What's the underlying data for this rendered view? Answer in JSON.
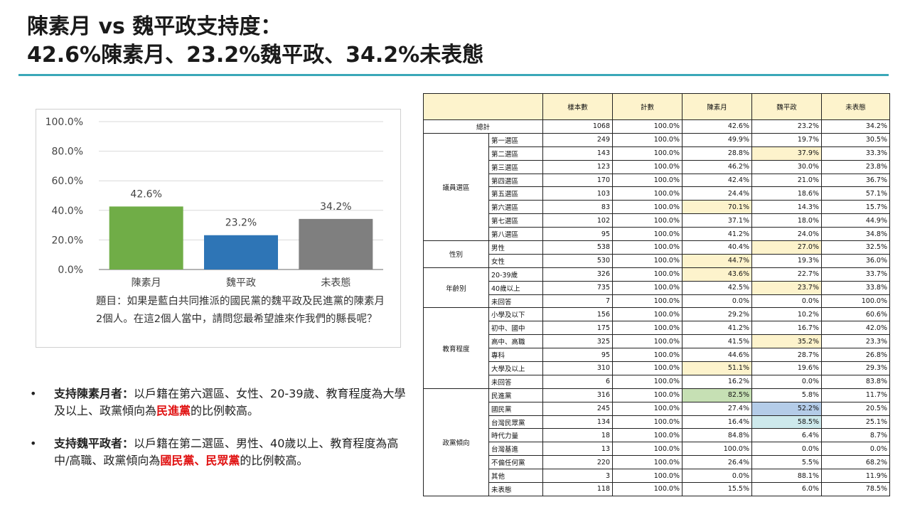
{
  "title": {
    "line1": "陳素月 vs 魏平政支持度：",
    "line2": "42.6%陳素月、23.2%魏平政、34.2%未表態"
  },
  "chart_data": {
    "type": "bar",
    "categories": [
      "陳素月",
      "魏平政",
      "未表態"
    ],
    "values": [
      42.6,
      23.2,
      34.2
    ],
    "value_labels": [
      "42.6%",
      "23.2%",
      "34.2%"
    ],
    "colors": [
      "#70ad47",
      "#2e75b6",
      "#7f7f7f"
    ],
    "ylim": [
      0,
      100
    ],
    "yticks": [
      0,
      20,
      40,
      60,
      80,
      100
    ],
    "ytick_labels": [
      "0.0%",
      "20.0%",
      "40.0%",
      "60.0%",
      "80.0%",
      "100.0%"
    ],
    "grid": true
  },
  "question": "題目：如果是藍白共同推派的國民黨的魏平政及民進黨的陳素月2個人。在這2個人當中，請問您最希望誰來作我們的縣長呢？",
  "bullets": [
    {
      "lead": "支持陳素月者：",
      "text": "以戶籍在第六選區、女性、20-39歲、教育程度為大學及以上、政黨傾向為",
      "red": "民進黨",
      "tail": "的比例較高。"
    },
    {
      "lead": "支持魏平政者：",
      "text": "以戶籍在第二選區、男性、40歲以上、教育程度為高中/高職、政黨傾向為",
      "red": "國民黨、民眾黨",
      "tail": "的比例較高。"
    }
  ],
  "table": {
    "headers": [
      "樣本數",
      "計數",
      "陳素月",
      "魏平政",
      "未表態"
    ],
    "total": {
      "label": "總計",
      "values": [
        "1068",
        "100.0%",
        "42.6%",
        "23.2%",
        "34.2%"
      ]
    },
    "groups": [
      {
        "name": "議員選區",
        "rows": [
          {
            "label": "第一選區",
            "values": [
              "249",
              "100.0%",
              "49.9%",
              "19.7%",
              "30.5%"
            ]
          },
          {
            "label": "第二選區",
            "values": [
              "143",
              "100.0%",
              "28.8%",
              "37.9%",
              "33.3%"
            ],
            "hl": {
              "3": "y"
            }
          },
          {
            "label": "第三選區",
            "values": [
              "123",
              "100.0%",
              "46.2%",
              "30.0%",
              "23.8%"
            ]
          },
          {
            "label": "第四選區",
            "values": [
              "170",
              "100.0%",
              "42.4%",
              "21.0%",
              "36.7%"
            ]
          },
          {
            "label": "第五選區",
            "values": [
              "103",
              "100.0%",
              "24.4%",
              "18.6%",
              "57.1%"
            ]
          },
          {
            "label": "第六選區",
            "values": [
              "83",
              "100.0%",
              "70.1%",
              "14.3%",
              "15.7%"
            ],
            "hl": {
              "2": "y"
            }
          },
          {
            "label": "第七選區",
            "values": [
              "102",
              "100.0%",
              "37.1%",
              "18.0%",
              "44.9%"
            ]
          },
          {
            "label": "第八選區",
            "values": [
              "95",
              "100.0%",
              "41.2%",
              "24.0%",
              "34.8%"
            ]
          }
        ]
      },
      {
        "name": "性別",
        "rows": [
          {
            "label": "男性",
            "values": [
              "538",
              "100.0%",
              "40.4%",
              "27.0%",
              "32.5%"
            ],
            "hl": {
              "3": "y"
            }
          },
          {
            "label": "女性",
            "values": [
              "530",
              "100.0%",
              "44.7%",
              "19.3%",
              "36.0%"
            ],
            "hl": {
              "2": "y"
            }
          }
        ]
      },
      {
        "name": "年齡別",
        "rows": [
          {
            "label": "20-39歲",
            "values": [
              "326",
              "100.0%",
              "43.6%",
              "22.7%",
              "33.7%"
            ],
            "hl": {
              "2": "y"
            }
          },
          {
            "label": "40歲以上",
            "values": [
              "735",
              "100.0%",
              "42.5%",
              "23.7%",
              "33.8%"
            ],
            "hl": {
              "3": "y"
            }
          },
          {
            "label": "未回答",
            "values": [
              "7",
              "100.0%",
              "0.0%",
              "0.0%",
              "100.0%"
            ]
          }
        ]
      },
      {
        "name": "教育程度",
        "rows": [
          {
            "label": "小學及以下",
            "values": [
              "156",
              "100.0%",
              "29.2%",
              "10.2%",
              "60.6%"
            ]
          },
          {
            "label": "初中、國中",
            "values": [
              "175",
              "100.0%",
              "41.2%",
              "16.7%",
              "42.0%"
            ]
          },
          {
            "label": "高中、高職",
            "values": [
              "325",
              "100.0%",
              "41.5%",
              "35.2%",
              "23.3%"
            ],
            "hl": {
              "3": "y"
            }
          },
          {
            "label": "專科",
            "values": [
              "95",
              "100.0%",
              "44.6%",
              "28.7%",
              "26.8%"
            ]
          },
          {
            "label": "大學及以上",
            "values": [
              "310",
              "100.0%",
              "51.1%",
              "19.6%",
              "29.3%"
            ],
            "hl": {
              "2": "y"
            }
          },
          {
            "label": "未回答",
            "values": [
              "6",
              "100.0%",
              "16.2%",
              "0.0%",
              "83.8%"
            ]
          }
        ]
      },
      {
        "name": "政黨傾向",
        "rows": [
          {
            "label": "民進黨",
            "values": [
              "316",
              "100.0%",
              "82.5%",
              "5.8%",
              "11.7%"
            ],
            "hl": {
              "2": "g"
            }
          },
          {
            "label": "國民黨",
            "values": [
              "245",
              "100.0%",
              "27.4%",
              "52.2%",
              "20.5%"
            ],
            "hl": {
              "3": "b"
            }
          },
          {
            "label": "台灣民眾黨",
            "values": [
              "134",
              "100.0%",
              "16.4%",
              "58.5%",
              "25.1%"
            ],
            "hl": {
              "3": "c"
            }
          },
          {
            "label": "時代力量",
            "values": [
              "18",
              "100.0%",
              "84.8%",
              "6.4%",
              "8.7%"
            ]
          },
          {
            "label": "台灣基進",
            "values": [
              "13",
              "100.0%",
              "100.0%",
              "0.0%",
              "0.0%"
            ]
          },
          {
            "label": "不偏任何黨",
            "values": [
              "220",
              "100.0%",
              "26.4%",
              "5.5%",
              "68.2%"
            ]
          },
          {
            "label": "其他",
            "values": [
              "3",
              "100.0%",
              "0.0%",
              "88.1%",
              "11.9%"
            ]
          },
          {
            "label": "未表態",
            "values": [
              "118",
              "100.0%",
              "15.5%",
              "6.0%",
              "78.5%"
            ]
          }
        ]
      }
    ]
  }
}
